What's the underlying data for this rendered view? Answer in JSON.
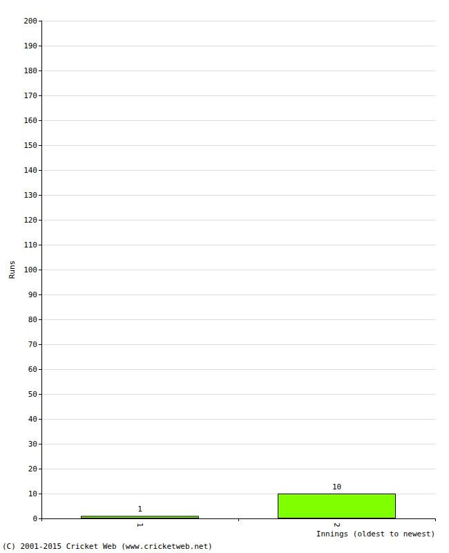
{
  "chart_data": {
    "type": "bar",
    "y_label": "Runs",
    "x_label": "Innings (oldest to newest)",
    "annotations": [
      "(C) 2001-2015 Cricket Web (www.cricketweb.net)"
    ],
    "categories": [
      "1",
      "2"
    ],
    "values": [
      1,
      10
    ],
    "color": "#80ff00",
    "ylim": [
      0,
      200
    ],
    "yticks": [
      0,
      10,
      20,
      30,
      40,
      50,
      60,
      70,
      80,
      90,
      100,
      110,
      120,
      130,
      140,
      150,
      160,
      170,
      180,
      190,
      200
    ],
    "grid": true,
    "data_labels": true
  }
}
